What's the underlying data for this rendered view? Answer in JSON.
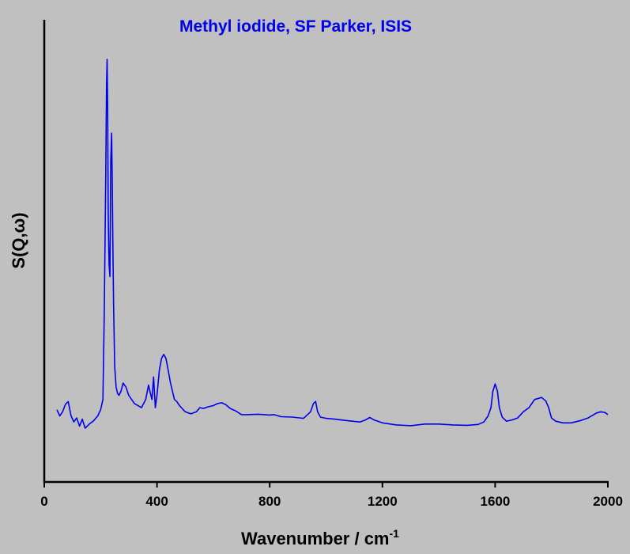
{
  "chart_data": {
    "type": "line",
    "title": "Methyl iodide, SF Parker, ISIS",
    "title_color": "#0000ee",
    "line_color": "#0000ee",
    "xlabel": "Wavenumber / cm",
    "xlabel_superscript": "-1",
    "ylabel": "S(Q,ω)",
    "xlim": [
      0,
      2000
    ],
    "ylim": [
      0,
      1
    ],
    "x_ticks": [
      0,
      400,
      800,
      1200,
      1600,
      2000
    ],
    "y_ticks_labeled": false,
    "grid": false,
    "legend": "none",
    "series": [
      {
        "x": [
          45,
          55,
          65,
          75,
          85,
          95,
          105,
          115,
          125,
          135,
          145,
          160,
          175,
          190,
          200,
          208,
          213,
          218,
          221,
          223,
          225,
          227,
          230,
          233,
          236,
          239,
          241,
          243,
          246,
          250,
          255,
          260,
          265,
          272,
          280,
          290,
          300,
          320,
          345,
          360,
          370,
          375,
          382,
          388,
          394,
          400,
          408,
          416,
          424,
          432,
          440,
          448,
          455,
          462,
          470,
          480,
          500,
          520,
          540,
          552,
          565,
          580,
          600,
          615,
          630,
          645,
          660,
          680,
          700,
          720,
          760,
          800,
          815,
          840,
          880,
          920,
          945,
          955,
          963,
          970,
          980,
          1000,
          1030,
          1080,
          1120,
          1140,
          1155,
          1170,
          1200,
          1250,
          1300,
          1350,
          1400,
          1450,
          1500,
          1540,
          1560,
          1575,
          1585,
          1592,
          1600,
          1608,
          1615,
          1625,
          1640,
          1660,
          1680,
          1700,
          1720,
          1740,
          1765,
          1780,
          1790,
          1800,
          1815,
          1840,
          1870,
          1900,
          1930,
          1960,
          1975,
          1990,
          2000
        ],
        "y": [
          0.145,
          0.13,
          0.14,
          0.158,
          0.165,
          0.13,
          0.115,
          0.125,
          0.105,
          0.122,
          0.1,
          0.11,
          0.118,
          0.13,
          0.145,
          0.17,
          0.38,
          0.7,
          0.94,
          1.0,
          0.88,
          0.62,
          0.5,
          0.47,
          0.75,
          0.82,
          0.72,
          0.58,
          0.4,
          0.25,
          0.2,
          0.185,
          0.18,
          0.19,
          0.21,
          0.2,
          0.18,
          0.16,
          0.15,
          0.17,
          0.205,
          0.19,
          0.17,
          0.225,
          0.15,
          0.18,
          0.24,
          0.27,
          0.28,
          0.27,
          0.24,
          0.21,
          0.19,
          0.17,
          0.165,
          0.155,
          0.14,
          0.135,
          0.14,
          0.15,
          0.148,
          0.152,
          0.155,
          0.16,
          0.162,
          0.157,
          0.148,
          0.142,
          0.133,
          0.133,
          0.134,
          0.132,
          0.133,
          0.128,
          0.127,
          0.124,
          0.14,
          0.16,
          0.165,
          0.14,
          0.127,
          0.124,
          0.122,
          0.118,
          0.115,
          0.12,
          0.126,
          0.12,
          0.113,
          0.108,
          0.106,
          0.11,
          0.11,
          0.108,
          0.107,
          0.109,
          0.115,
          0.13,
          0.15,
          0.19,
          0.208,
          0.19,
          0.15,
          0.127,
          0.117,
          0.12,
          0.125,
          0.14,
          0.15,
          0.17,
          0.175,
          0.166,
          0.15,
          0.125,
          0.117,
          0.113,
          0.113,
          0.118,
          0.125,
          0.137,
          0.14,
          0.138,
          0.133
        ]
      }
    ]
  }
}
